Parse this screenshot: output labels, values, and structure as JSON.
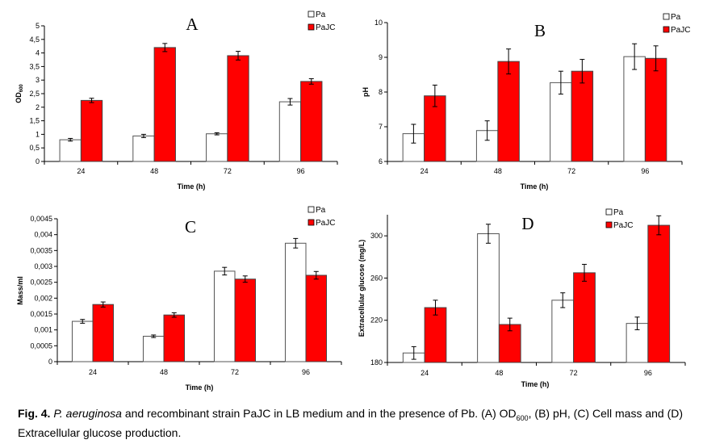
{
  "colors": {
    "pa_fill": "#ffffff",
    "pajc_fill": "#ff0000",
    "axis": "#000000"
  },
  "chart_data": [
    {
      "type": "bar",
      "panel": "A",
      "title": "A",
      "xlabel": "Time (h)",
      "ylabel": "OD",
      "ylabel_sub": "600",
      "categories": [
        "24",
        "48",
        "72",
        "96"
      ],
      "yticks": [
        "0",
        "0,5",
        "1",
        "1,5",
        "2",
        "2,5",
        "3",
        "3,5",
        "4",
        "4,5",
        "5"
      ],
      "ylim": [
        0,
        5
      ],
      "legend": [
        "Pa",
        "PaJC"
      ],
      "legend_position": "top-right",
      "series": [
        {
          "name": "Pa",
          "values": [
            0.8,
            0.94,
            1.02,
            2.2
          ],
          "errors": [
            0.05,
            0.06,
            0.04,
            0.12
          ]
        },
        {
          "name": "PaJC",
          "values": [
            2.25,
            4.2,
            3.9,
            2.95
          ],
          "errors": [
            0.08,
            0.15,
            0.16,
            0.1
          ]
        }
      ]
    },
    {
      "type": "bar",
      "panel": "B",
      "title": "B",
      "xlabel": "Time (h)",
      "ylabel": "pH",
      "ylabel_sub": "",
      "categories": [
        "24",
        "48",
        "72",
        "96"
      ],
      "yticks": [
        "6",
        "7",
        "8",
        "9",
        "10"
      ],
      "ylim": [
        6,
        10
      ],
      "legend": [
        "Pa",
        "PaJC"
      ],
      "legend_position": "top-right",
      "series": [
        {
          "name": "Pa",
          "values": [
            6.8,
            6.89,
            8.27,
            9.02
          ],
          "errors": [
            0.27,
            0.28,
            0.33,
            0.37
          ]
        },
        {
          "name": "PaJC",
          "values": [
            7.89,
            8.88,
            8.6,
            8.97
          ],
          "errors": [
            0.31,
            0.36,
            0.34,
            0.36
          ]
        }
      ]
    },
    {
      "type": "bar",
      "panel": "C",
      "title": "C",
      "xlabel": "Time (h)",
      "ylabel": "Mass/ml",
      "ylabel_sub": "",
      "categories": [
        "24",
        "48",
        "72",
        "96"
      ],
      "yticks": [
        "0",
        "0,0005",
        "0,001",
        "0,0015",
        "0,002",
        "0,0025",
        "0,003",
        "0,0035",
        "0,004",
        "0,0045"
      ],
      "ylim": [
        0,
        0.0045
      ],
      "legend": [
        "Pa",
        "PaJC"
      ],
      "legend_position": "top-right",
      "series": [
        {
          "name": "Pa",
          "values": [
            0.00127,
            0.0008,
            0.00285,
            0.00373
          ],
          "errors": [
            6e-05,
            4e-05,
            0.00012,
            0.00015
          ]
        },
        {
          "name": "PaJC",
          "values": [
            0.0018,
            0.00147,
            0.0026,
            0.00272
          ],
          "errors": [
            8e-05,
            7e-05,
            0.0001,
            0.00012
          ]
        }
      ]
    },
    {
      "type": "bar",
      "panel": "D",
      "title": "D",
      "xlabel": "Time (h)",
      "ylabel": "Extracellular glucose (mg/L)",
      "ylabel_sub": "",
      "categories": [
        "24",
        "48",
        "72",
        "96"
      ],
      "yticks": [
        "180",
        "220",
        "260",
        "300"
      ],
      "ylim": [
        180,
        320
      ],
      "legend": [
        "Pa",
        "PaJC"
      ],
      "legend_position": "top-right",
      "series": [
        {
          "name": "Pa",
          "values": [
            189,
            302,
            239,
            217
          ],
          "errors": [
            6,
            9,
            7,
            6
          ]
        },
        {
          "name": "PaJC",
          "values": [
            232,
            216,
            265,
            310
          ],
          "errors": [
            7,
            6,
            8,
            9
          ]
        }
      ]
    }
  ],
  "caption": {
    "fig_label": "Fig. 4.",
    "species": "P. aeruginosa",
    "text1": " and recombinant strain PaJC in LB medium and in the presence of Pb. (A) OD",
    "od_sub": "600",
    "text2": ", (B) pH, (C) Cell mass and (D) Extracellular glucose production."
  }
}
